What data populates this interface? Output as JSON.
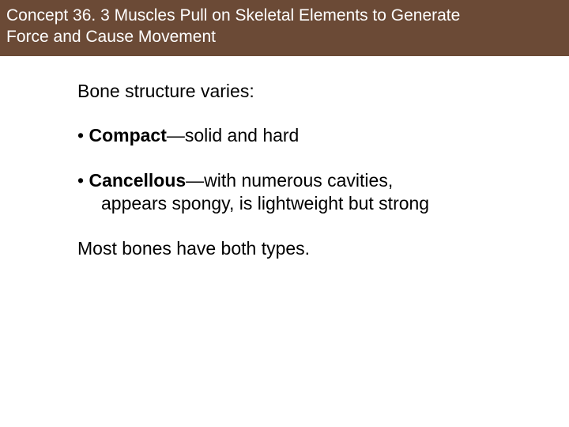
{
  "header": {
    "title_line1": "Concept 36. 3 Muscles Pull on Skeletal Elements to Generate",
    "title_line2": "Force and Cause Movement",
    "bg_color": "#6b4a36",
    "text_color": "#ffffff"
  },
  "body": {
    "intro": "Bone structure varies:",
    "bullets": [
      {
        "term": "Compact",
        "dash": "—",
        "desc": "solid and hard"
      },
      {
        "term": "Cancellous",
        "dash": "—",
        "desc_line1": "with numerous cavities,",
        "desc_line2": "appears spongy, is lightweight but strong"
      }
    ],
    "closing": "Most bones have both types."
  }
}
